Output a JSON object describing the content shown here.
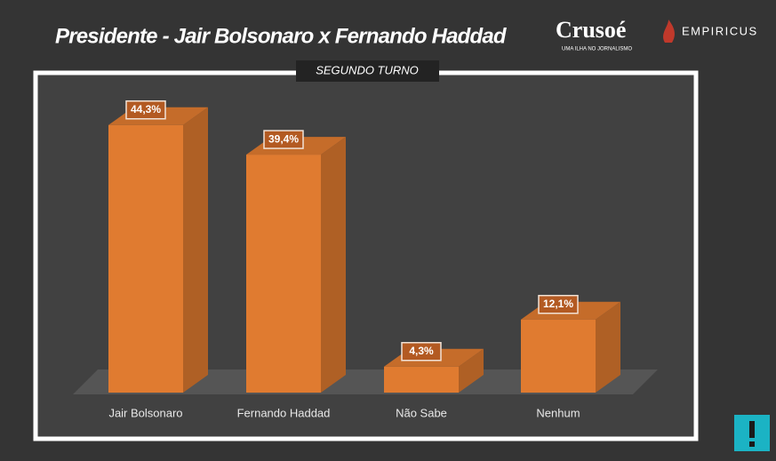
{
  "header": {
    "logo_main": "Crusoé",
    "logo_tagline": "UMA ILHA NO JORNALISMO",
    "logo_partner": "EMPIRICUS"
  },
  "chart_data": {
    "type": "bar3d",
    "title": "Presidente -  Jair Bolsonaro x Fernando Haddad",
    "subtitle": "SEGUNDO TURNO",
    "categories": [
      "Jair Bolsonaro",
      "Fernando Haddad",
      "Não Sabe",
      "Nenhum"
    ],
    "values": [
      44.3,
      39.4,
      4.3,
      12.1
    ],
    "value_labels": [
      "44,3%",
      "39,4%",
      "4,3%",
      "12,1%"
    ],
    "color": "#e07b30"
  }
}
